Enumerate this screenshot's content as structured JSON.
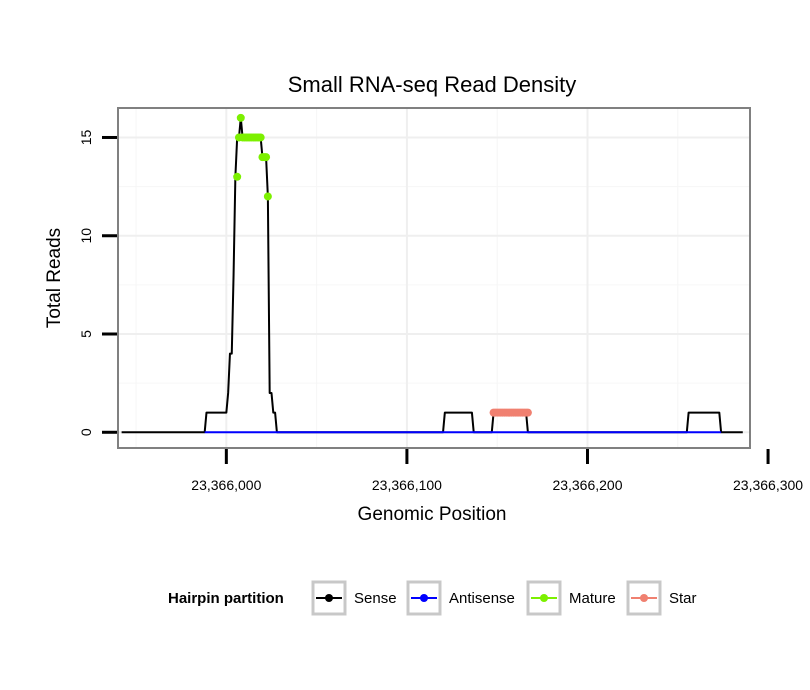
{
  "chart_data": {
    "type": "line",
    "title": "Small RNA-seq Read Density",
    "xlabel": "Genomic Position",
    "ylabel": "Total Reads",
    "xlim": [
      23365940,
      23366290
    ],
    "ylim": [
      -0.8,
      16.5
    ],
    "x_ticks": [
      23366000,
      23366100,
      23366200,
      23366300
    ],
    "x_tick_labels": [
      "23,366,000",
      "23,366,100",
      "23,366,200",
      "23,366,300"
    ],
    "y_ticks": [
      0,
      5,
      10,
      15
    ],
    "y_tick_labels": [
      "0",
      "5",
      "10",
      "15"
    ],
    "grid": true,
    "legend": {
      "title": "Hairpin partition",
      "position": "bottom",
      "entries": [
        "Sense",
        "Antisense",
        "Mature",
        "Star"
      ]
    },
    "series": [
      {
        "name": "Sense",
        "color": "#000000",
        "style": "line",
        "x": [
          23365942,
          23365988,
          23365989,
          23366000,
          23366001,
          23366002,
          23366003,
          23366004,
          23366005,
          23366006,
          23366007,
          23366008,
          23366009,
          23366010,
          23366011,
          23366012,
          23366013,
          23366014,
          23366015,
          23366016,
          23366017,
          23366018,
          23366019,
          23366020,
          23366021,
          23366022,
          23366023,
          23366024,
          23366025,
          23366026,
          23366027,
          23366028,
          23366029,
          23366120,
          23366121,
          23366136,
          23366137,
          23366147,
          23366148,
          23366166,
          23366167,
          23366255,
          23366256,
          23366273,
          23366274,
          23366286
        ],
        "y": [
          0,
          0,
          1,
          1,
          2,
          4,
          4,
          8,
          13,
          15,
          15,
          16,
          15,
          15,
          15,
          15,
          15,
          15,
          15,
          15,
          15,
          15,
          15,
          14,
          14,
          14,
          12,
          2,
          2,
          1,
          1,
          0,
          0,
          0,
          1,
          1,
          0,
          0,
          1,
          1,
          0,
          0,
          1,
          1,
          0,
          0
        ]
      },
      {
        "name": "Antisense",
        "color": "#0000ff",
        "style": "line",
        "x": [
          23365988,
          23366029,
          23366120,
          23366137,
          23366147,
          23366167,
          23366255,
          23366274
        ],
        "y": [
          0,
          0,
          0,
          0,
          0,
          0,
          0,
          0
        ]
      },
      {
        "name": "Mature",
        "color": "#7cf000",
        "style": "points",
        "x": [
          23366006,
          23366007,
          23366008,
          23366009,
          23366010,
          23366011,
          23366012,
          23366013,
          23366014,
          23366015,
          23366016,
          23366017,
          23366018,
          23366019,
          23366020,
          23366021,
          23366022,
          23366023
        ],
        "y": [
          13,
          15,
          16,
          15,
          15,
          15,
          15,
          15,
          15,
          15,
          15,
          15,
          15,
          15,
          14,
          14,
          14,
          12
        ]
      },
      {
        "name": "Star",
        "color": "#f08070",
        "style": "points",
        "x": [
          23366148,
          23366149,
          23366150,
          23366151,
          23366152,
          23366153,
          23366154,
          23366155,
          23366156,
          23366157,
          23366158,
          23366159,
          23366160,
          23366161,
          23366162,
          23366163,
          23366164,
          23366165,
          23366166,
          23366167
        ],
        "y": [
          1,
          1,
          1,
          1,
          1,
          1,
          1,
          1,
          1,
          1,
          1,
          1,
          1,
          1,
          1,
          1,
          1,
          1,
          1,
          1
        ]
      }
    ]
  }
}
